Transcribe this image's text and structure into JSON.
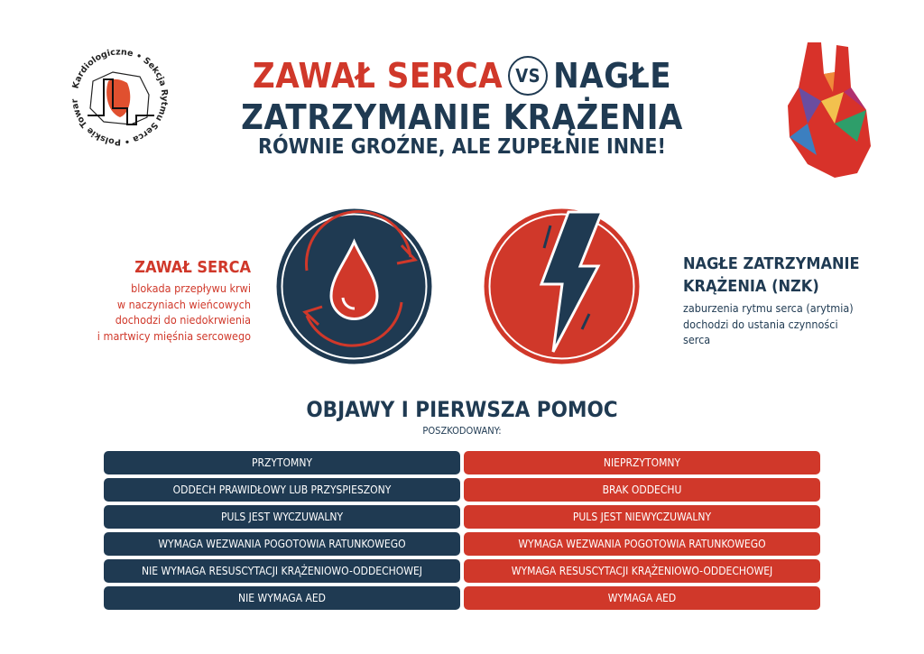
{
  "colors": {
    "navy": "#1f3a52",
    "red": "#d0382a"
  },
  "logo": {
    "top_text": "Sekcja Rytmu Serca",
    "side_text": "Polskie Towarzystwo Kardiologiczne"
  },
  "header": {
    "title_red": "ZAWAŁ SERCA",
    "vs": "VS",
    "title_navy_1": "NAGŁE",
    "title_line2": "ZATRZYMANIE KRĄŻENIA",
    "subtitle": "RÓWNIE GROŹNE, ALE ZUPEŁNIE INNE!"
  },
  "left": {
    "icon": "blood-drop-cycle-icon",
    "title": "ZAWAŁ SERCA",
    "lines": [
      "blokada przepływu krwi",
      "w naczyniach wieńcowych",
      "dochodzi do niedokrwienia",
      "i martwicy mięśnia sercowego"
    ]
  },
  "right": {
    "icon": "lightning-bolt-icon",
    "title_1": "NAGŁE ZATRZYMANIE",
    "title_2": "KRĄŻENIA (NZK)",
    "lines": [
      "zaburzenia rytmu serca (arytmia)",
      "dochodzi do ustania czynności",
      "serca"
    ]
  },
  "section": {
    "title": "OBJAWY I PIERWSZA POMOC",
    "subtitle": "POSZKODOWANY:"
  },
  "table": {
    "rows": [
      {
        "left": "PRZYTOMNY",
        "right": "NIEPRZYTOMNY"
      },
      {
        "left": "ODDECH PRAWIDŁOWY LUB PRZYSPIESZONY",
        "right": "BRAK ODDECHU"
      },
      {
        "left": "PULS JEST WYCZUWALNY",
        "right": "PULS JEST NIEWYCZUWALNY"
      },
      {
        "left": "WYMAGA WEZWANIA POGOTOWIA RATUNKOWEGO",
        "right": "WYMAGA WEZWANIA POGOTOWIA RATUNKOWEGO"
      },
      {
        "left": "NIE WYMAGA RESUSCYTACJI KRĄŻENIOWO-ODDECHOWEJ",
        "right": "WYMAGA RESUSCYTACJI KRĄŻENIOWO-ODDECHOWEJ"
      },
      {
        "left": "NIE WYMAGA AED",
        "right": "WYMAGA AED"
      }
    ]
  }
}
